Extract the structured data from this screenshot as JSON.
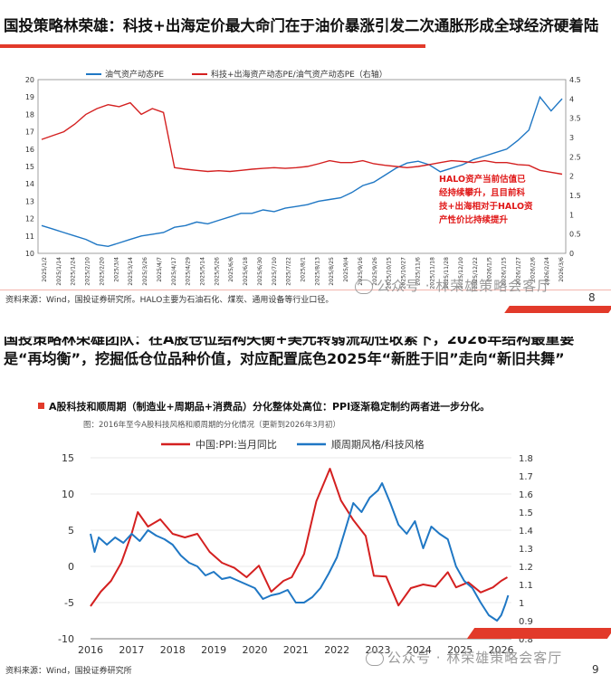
{
  "slide1": {
    "title": "国投策略林荣雄：科技+出海定价最大命门在于油价暴涨引发二次通胀形成全球经济硬着陆",
    "source": "资料来源：Wind，国投证券研究所。HALO主要为石油石化、煤炭、通用设备等行业口径。",
    "page_number": "8",
    "watermark": "公众号 · 林荣雄策略会客厅",
    "annotation": [
      "HALO资产当前估值已",
      "经持续攀升，且目前科",
      "技+出海相对于HALO资",
      "产性价比持续提升"
    ]
  },
  "slide2": {
    "title_line1": "国投策略林荣雄团队：在A股仓位结构失衡+美元转弱流动性收紧下，2026年结构最重要",
    "title_line2": "是“再均衡”，挖掘低仓位品种价值，对应配置底色2025年“新胜于旧”走向“新旧共舞”",
    "subheading": "A股科技和顺周期（制造业+周期品+消费品）分化整体处高位：PPI逐渐稳定制约两者进一步分化。",
    "figure_caption": "图：2016年至今A股科技风格和顺周期的分化情况（更新到2026年3月初）",
    "source": "资料来源：Wind，国投证券研究所",
    "page_number": "9",
    "watermark": "公众号 · 林荣雄策略会客厅"
  },
  "colors": {
    "blue": "#1f77c4",
    "red": "#d42020",
    "accent": "#e23a2a"
  },
  "chart_data": [
    {
      "type": "line",
      "title": "",
      "legend_position": "top",
      "y_left": {
        "min": 10,
        "max": 20,
        "ticks": [
          10,
          11,
          12,
          13,
          14,
          15,
          16,
          17,
          18,
          19,
          20
        ]
      },
      "y_right": {
        "min": 0,
        "max": 4.5,
        "ticks": [
          "0",
          "0.5",
          "1",
          "1.5",
          "2",
          "2.5",
          "3",
          "3.5",
          "4",
          "4.5"
        ]
      },
      "x_ticks": [
        "2025/1/2",
        "2025/1/14",
        "2025/1/24",
        "2025/2/10",
        "2025/2/20",
        "2025/3/4",
        "2025/3/14",
        "2025/3/26",
        "2025/4/7",
        "2025/4/17",
        "2025/4/29",
        "2025/5/14",
        "2025/5/26",
        "2025/6/6",
        "2025/6/18",
        "2025/6/30",
        "2025/7/10",
        "2025/7/22",
        "2025/8/1",
        "2025/8/13",
        "2025/8/25",
        "2025/9/4",
        "2025/9/16",
        "2025/9/26",
        "2025/10/15",
        "2025/10/27",
        "2025/11/6",
        "2025/11/18",
        "2025/11/28",
        "2025/12/10",
        "2025/12/22",
        "2026/1/5",
        "2026/1/15",
        "2026/1/27",
        "2026/2/6",
        "2026/2/24",
        "2026/3/6"
      ],
      "series": [
        {
          "name": "油气资产动态PE",
          "axis": "left",
          "color": "#1f77c4",
          "values": [
            11.6,
            11.4,
            11.2,
            11.0,
            10.8,
            10.5,
            10.4,
            10.6,
            10.8,
            11.0,
            11.1,
            11.2,
            11.5,
            11.6,
            11.8,
            11.7,
            11.9,
            12.1,
            12.3,
            12.3,
            12.5,
            12.4,
            12.6,
            12.7,
            12.8,
            13.0,
            13.1,
            13.2,
            13.5,
            13.9,
            14.1,
            14.5,
            14.9,
            15.2,
            15.3,
            15.1,
            14.7,
            14.9,
            15.1,
            15.4,
            15.6,
            15.8,
            16.0,
            16.5,
            17.1,
            19.0,
            18.2,
            18.9
          ]
        },
        {
          "name": "科技+出海资产动态PE/油气资产动态PE（右轴）",
          "axis": "right",
          "color": "#d42020",
          "values": [
            2.95,
            3.05,
            3.15,
            3.35,
            3.6,
            3.75,
            3.85,
            3.8,
            3.9,
            3.6,
            3.75,
            3.65,
            2.22,
            2.18,
            2.15,
            2.12,
            2.14,
            2.12,
            2.15,
            2.18,
            2.2,
            2.22,
            2.2,
            2.22,
            2.25,
            2.32,
            2.4,
            2.35,
            2.35,
            2.4,
            2.32,
            2.28,
            2.25,
            2.22,
            2.25,
            2.3,
            2.35,
            2.4,
            2.38,
            2.35,
            2.4,
            2.35,
            2.35,
            2.3,
            2.28,
            2.15,
            2.1,
            2.05
          ]
        }
      ]
    },
    {
      "type": "line",
      "title": "",
      "legend_position": "top",
      "y_left": {
        "min": -10,
        "max": 15,
        "ticks": [
          "-10",
          "-5",
          "0",
          "5",
          "10",
          "15"
        ]
      },
      "y_right": {
        "min": 0.8,
        "max": 1.8,
        "ticks": [
          "0.8",
          "0.9",
          "1",
          "1.1",
          "1.2",
          "1.3",
          "1.4",
          "1.5",
          "1.6",
          "1.7",
          "1.8"
        ]
      },
      "x_ticks": [
        "2016",
        "2017",
        "2018",
        "2019",
        "2020",
        "2021",
        "2022",
        "2023",
        "2024",
        "2025",
        "2026"
      ],
      "series": [
        {
          "name": "中国:PPI:当月同比",
          "axis": "left",
          "color": "#d42020",
          "x": [
            2016.0,
            2016.25,
            2016.5,
            2016.75,
            2017.0,
            2017.15,
            2017.4,
            2017.7,
            2018.0,
            2018.3,
            2018.6,
            2018.9,
            2019.2,
            2019.5,
            2019.8,
            2020.1,
            2020.4,
            2020.7,
            2020.9,
            2021.2,
            2021.5,
            2021.83,
            2022.1,
            2022.4,
            2022.7,
            2022.9,
            2023.2,
            2023.5,
            2023.8,
            2024.1,
            2024.4,
            2024.7,
            2024.9,
            2025.2,
            2025.5,
            2025.8,
            2026.0,
            2026.15
          ],
          "values": [
            -5.5,
            -3.5,
            -2.0,
            0.5,
            4.5,
            7.5,
            5.5,
            6.5,
            4.5,
            4.0,
            4.5,
            2.0,
            0.5,
            -0.2,
            -1.5,
            0.1,
            -3.5,
            -2.0,
            -1.5,
            1.7,
            9.0,
            13.5,
            9.1,
            6.4,
            4.2,
            -1.3,
            -1.4,
            -5.4,
            -3.0,
            -2.5,
            -2.8,
            -0.8,
            -2.9,
            -2.2,
            -3.6,
            -2.9,
            -2.0,
            -1.5
          ]
        },
        {
          "name": "顺周期风格/科技风格",
          "axis": "right",
          "color": "#1f77c4",
          "x": [
            2016.0,
            2016.1,
            2016.2,
            2016.4,
            2016.6,
            2016.8,
            2017.0,
            2017.2,
            2017.4,
            2017.6,
            2017.8,
            2018.0,
            2018.2,
            2018.4,
            2018.6,
            2018.8,
            2019.0,
            2019.2,
            2019.4,
            2019.6,
            2019.8,
            2020.0,
            2020.2,
            2020.4,
            2020.6,
            2020.8,
            2021.0,
            2021.2,
            2021.4,
            2021.6,
            2021.8,
            2022.0,
            2022.2,
            2022.4,
            2022.6,
            2022.8,
            2023.0,
            2023.1,
            2023.3,
            2023.5,
            2023.7,
            2023.9,
            2024.1,
            2024.3,
            2024.5,
            2024.7,
            2024.9,
            2025.1,
            2025.3,
            2025.5,
            2025.7,
            2025.9,
            2026.0,
            2026.1,
            2026.17
          ],
          "values": [
            1.38,
            1.28,
            1.36,
            1.32,
            1.36,
            1.33,
            1.38,
            1.34,
            1.4,
            1.37,
            1.35,
            1.32,
            1.26,
            1.22,
            1.2,
            1.15,
            1.17,
            1.13,
            1.14,
            1.12,
            1.1,
            1.08,
            1.02,
            1.04,
            1.05,
            1.07,
            1.0,
            1.0,
            1.03,
            1.08,
            1.16,
            1.25,
            1.4,
            1.55,
            1.5,
            1.58,
            1.62,
            1.66,
            1.55,
            1.43,
            1.38,
            1.45,
            1.3,
            1.42,
            1.38,
            1.35,
            1.2,
            1.12,
            1.08,
            1.0,
            0.93,
            0.9,
            0.93,
            0.99,
            1.04
          ]
        }
      ]
    }
  ]
}
